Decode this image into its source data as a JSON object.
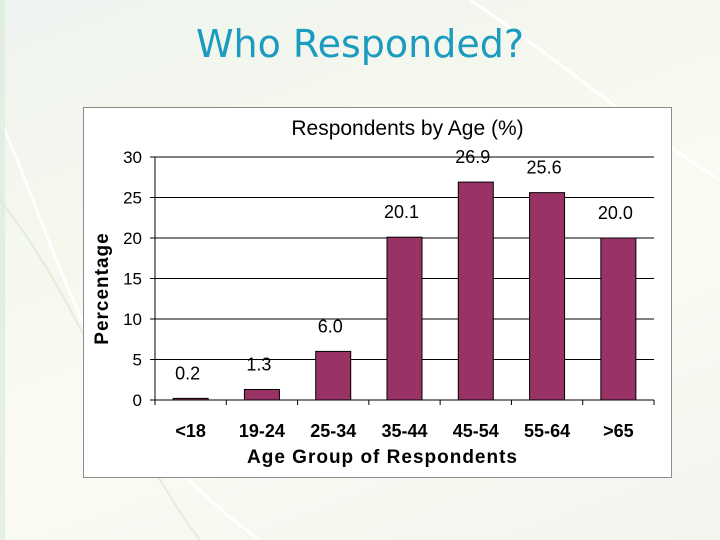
{
  "slide": {
    "title": "Who Responded?"
  },
  "chart_data": {
    "type": "bar",
    "title": "Respondents by Age (%)",
    "xlabel": "Age Group of Respondents",
    "ylabel": "Percentage",
    "categories": [
      "<18",
      "19-24",
      "25-34",
      "35-44",
      "45-54",
      "55-64",
      ">65"
    ],
    "values": [
      0.2,
      1.3,
      6.0,
      20.1,
      26.9,
      25.6,
      20.0
    ],
    "data_labels": [
      "0.2",
      "1.3",
      "6.0",
      "20.1",
      "26.9",
      "25.6",
      "20.0"
    ],
    "ylim": [
      0,
      30
    ],
    "yticks": [
      0,
      5,
      10,
      15,
      20,
      25,
      30
    ],
    "grid": true,
    "legend": "none",
    "bar_color": "#993366"
  }
}
